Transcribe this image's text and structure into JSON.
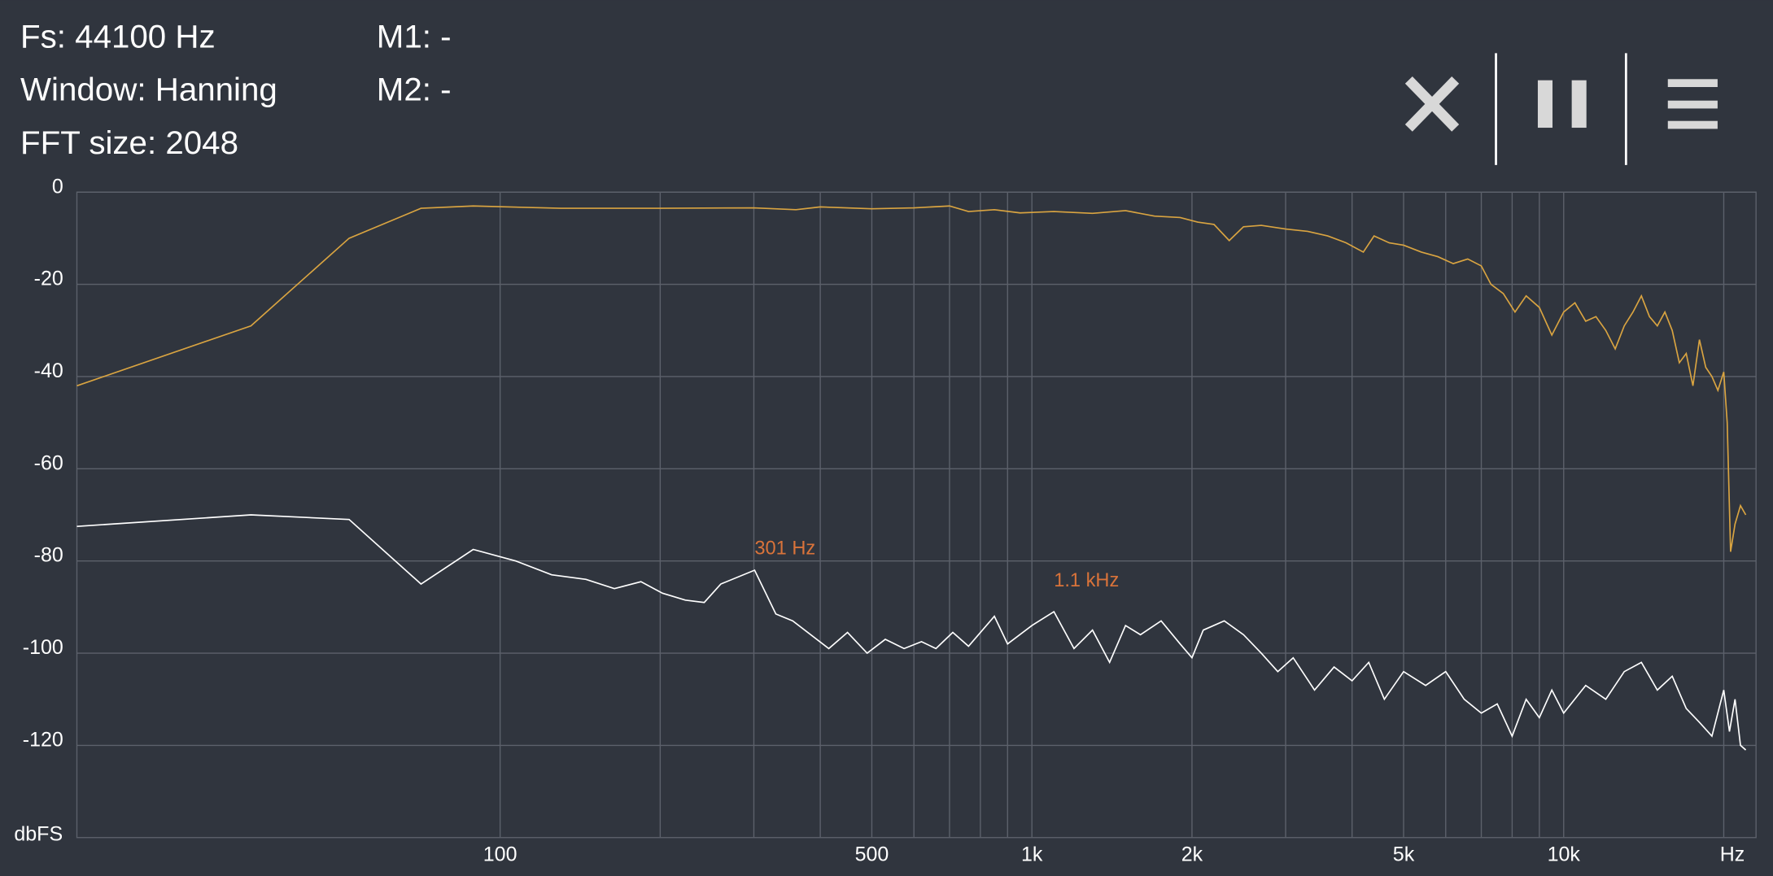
{
  "header": {
    "fs": "Fs: 44100 Hz",
    "window": "Window: Hanning",
    "fft_size": "FFT size: 2048",
    "m1": "M1: -",
    "m2": "M2: -"
  },
  "chart_data": {
    "type": "line",
    "log_x": true,
    "grid": true,
    "xlim": [
      16,
      23000
    ],
    "ylim": [
      -140,
      0
    ],
    "xticks": [
      100,
      500,
      {
        "value": 1000,
        "label": "1k"
      },
      {
        "value": 2000,
        "label": "2k"
      },
      {
        "value": 5000,
        "label": "5k"
      },
      {
        "value": 10000,
        "label": "10k"
      }
    ],
    "xgrid": [
      100,
      200,
      300,
      400,
      500,
      600,
      700,
      800,
      900,
      1000,
      2000,
      3000,
      4000,
      5000,
      6000,
      7000,
      8000,
      9000,
      10000,
      20000
    ],
    "yticks": [
      0,
      -20,
      -40,
      -60,
      -80,
      -100,
      -120
    ],
    "xlabel": "Hz",
    "ylabel": "dbFS",
    "series": [
      {
        "color": "#d9a441",
        "x": [
          16,
          34,
          52,
          71,
          89,
          130,
          200,
          300,
          360,
          400,
          500,
          600,
          700,
          760,
          850,
          950,
          1100,
          1300,
          1500,
          1700,
          1900,
          2050,
          2200,
          2350,
          2500,
          2700,
          3000,
          3300,
          3600,
          3900,
          4200,
          4400,
          4700,
          5000,
          5400,
          5800,
          6200,
          6600,
          7000,
          7300,
          7700,
          8100,
          8500,
          9000,
          9500,
          10000,
          10500,
          11000,
          11500,
          12000,
          12500,
          13000,
          13500,
          14000,
          14500,
          15000,
          15500,
          16000,
          16500,
          17000,
          17500,
          18000,
          18500,
          19000,
          19500,
          20000,
          20300,
          20600,
          21000,
          21500,
          22000
        ],
        "values": [
          -42,
          -29,
          -10,
          -3.5,
          -3,
          -3.5,
          -3.5,
          -3.4,
          -3.8,
          -3.2,
          -3.6,
          -3.4,
          -3,
          -4.2,
          -3.8,
          -4.5,
          -4.2,
          -4.6,
          -4,
          -5.2,
          -5.5,
          -6.5,
          -7,
          -10.5,
          -7.5,
          -7.2,
          -8,
          -8.5,
          -9.5,
          -11,
          -13,
          -9.5,
          -11,
          -11.5,
          -13,
          -14,
          -15.5,
          -14.5,
          -16,
          -20,
          -22,
          -26,
          -22.5,
          -25,
          -31,
          -26,
          -24,
          -28,
          -27,
          -30,
          -34,
          -29,
          -26,
          -22.5,
          -27,
          -29,
          -26,
          -30,
          -37,
          -35,
          -42,
          -32,
          -38,
          -40,
          -43,
          -39,
          -50,
          -78,
          -72,
          -68,
          -70
        ]
      },
      {
        "color": "#ffffff",
        "x": [
          16,
          34,
          52,
          71,
          89,
          107,
          125,
          145,
          164,
          184,
          202,
          223,
          242,
          260,
          301,
          330,
          355,
          415,
          450,
          490,
          530,
          575,
          620,
          660,
          710,
          760,
          850,
          900,
          1000,
          1100,
          1200,
          1300,
          1400,
          1500,
          1600,
          1750,
          1900,
          2000,
          2100,
          2300,
          2500,
          2700,
          2900,
          3100,
          3400,
          3700,
          4000,
          4300,
          4600,
          5000,
          5500,
          6000,
          6500,
          7000,
          7500,
          8000,
          8500,
          9000,
          9500,
          10000,
          11000,
          12000,
          13000,
          14000,
          15000,
          16000,
          17000,
          18000,
          19000,
          20000,
          20500,
          21000,
          21500,
          22000
        ],
        "values": [
          -72.5,
          -70,
          -71,
          -85,
          -77.5,
          -80,
          -83,
          -84,
          -86,
          -84.5,
          -87,
          -88.5,
          -89,
          -85,
          -82,
          -91.5,
          -93,
          -99,
          -95.5,
          -100,
          -97,
          -99,
          -97.5,
          -99,
          -95.5,
          -98.5,
          -92,
          -98,
          -94,
          -91,
          -99,
          -95,
          -102,
          -94,
          -96,
          -93,
          -98,
          -101,
          -95,
          -93,
          -96,
          -100,
          -104,
          -101,
          -108,
          -103,
          -106,
          -102,
          -110,
          -104,
          -107,
          -104,
          -110,
          -113,
          -111,
          -118,
          -110,
          -114,
          -108,
          -113,
          -107,
          -110,
          -104,
          -102,
          -108,
          -105,
          -112,
          -115,
          -118,
          -108,
          -117,
          -110,
          -120,
          -121
        ]
      }
    ],
    "annotations": [
      {
        "text": "301 Hz",
        "x": 301,
        "y": -80,
        "color": "#d9733a"
      },
      {
        "text": "1.1 kHz",
        "x": 1100,
        "y": -87,
        "color": "#d9733a"
      }
    ]
  }
}
